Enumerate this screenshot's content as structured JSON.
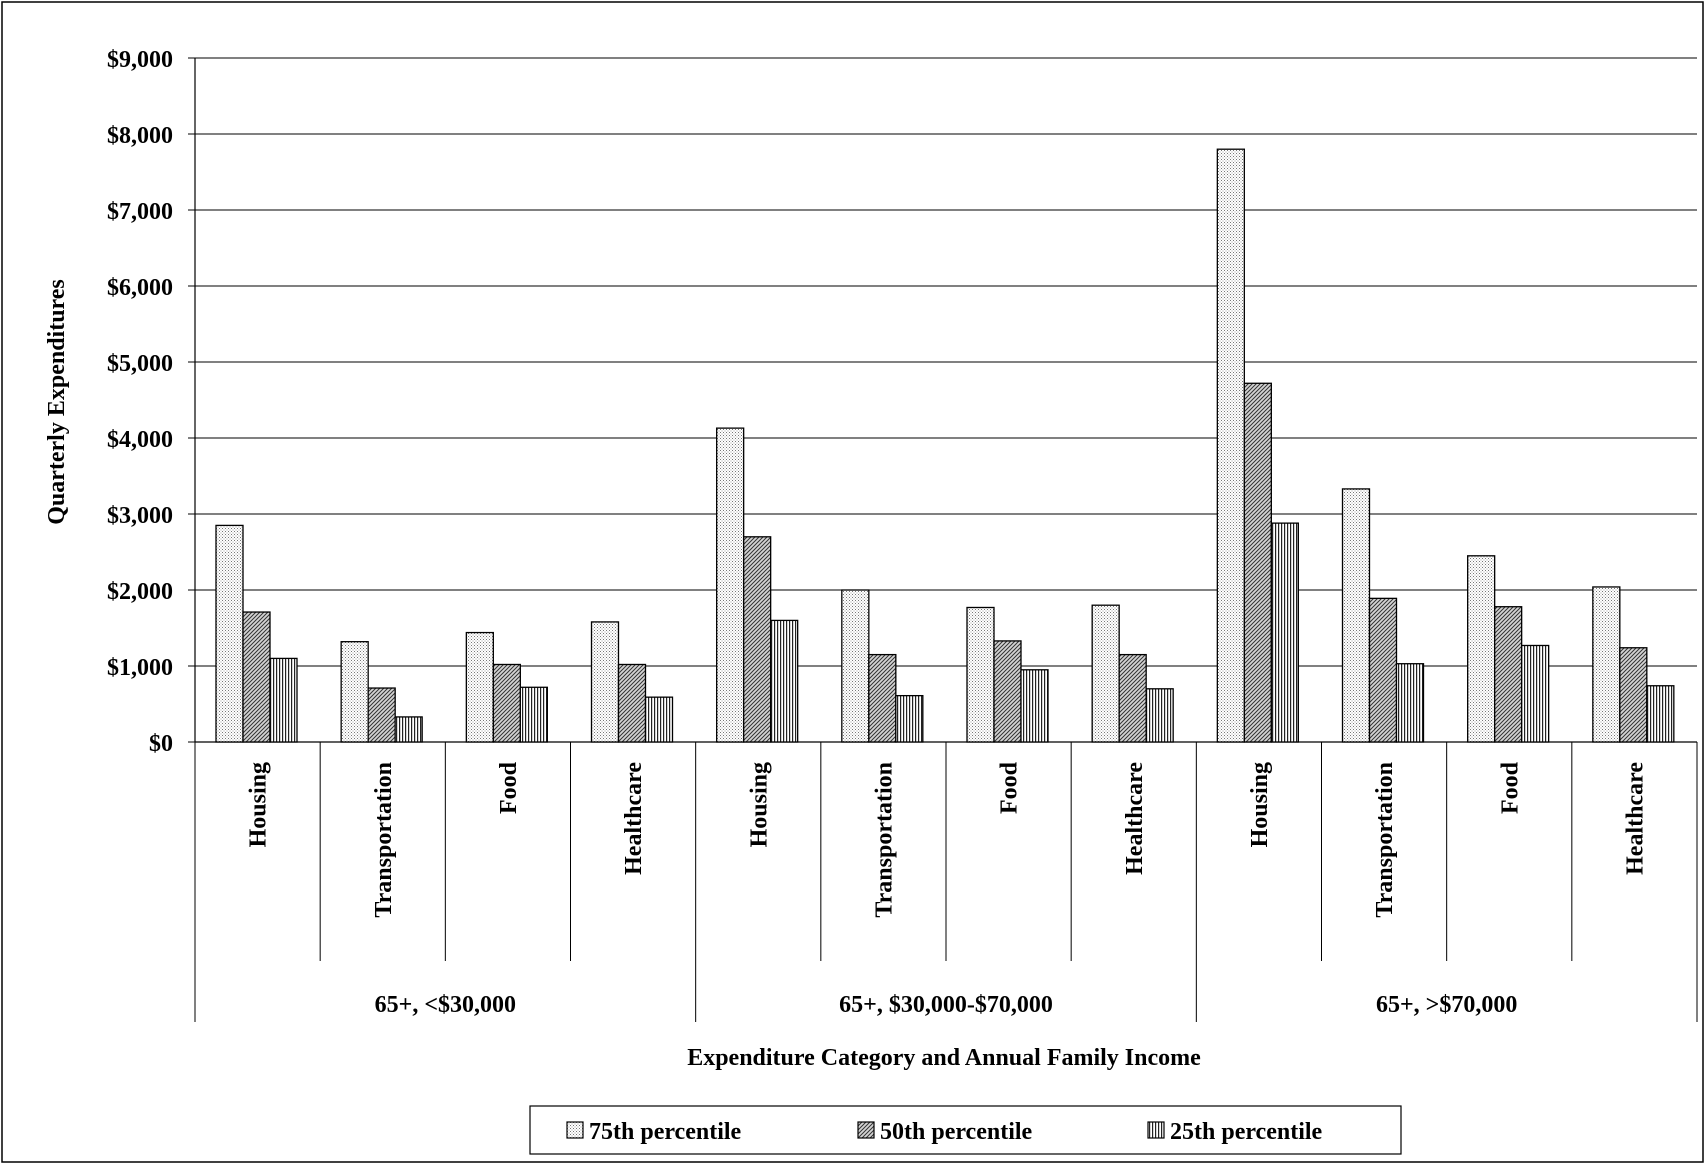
{
  "chart_data": {
    "type": "bar",
    "xlabel": "Expenditure Category and Annual Family Income",
    "ylabel": "Quarterly Expenditures",
    "ylim": [
      0,
      9000
    ],
    "y_ticks": [
      "$0",
      "$1,000",
      "$2,000",
      "$3,000",
      "$4,000",
      "$5,000",
      "$6,000",
      "$7,000",
      "$8,000",
      "$9,000"
    ],
    "grid": true,
    "legend_position": "bottom",
    "groups": [
      "65+, <$30,000",
      "65+, $30,000-$70,000",
      "65+, >$70,000"
    ],
    "categories": [
      "Housing",
      "Transportation",
      "Food",
      "Healthcare",
      "Housing",
      "Transportation",
      "Food",
      "Healthcare",
      "Housing",
      "Transportation",
      "Food",
      "Healthcare"
    ],
    "series": [
      {
        "name": "75th percentile",
        "values": [
          2850,
          1320,
          1440,
          1580,
          4130,
          2000,
          1770,
          1800,
          7800,
          3330,
          2450,
          2040
        ]
      },
      {
        "name": "50th percentile",
        "values": [
          1710,
          710,
          1020,
          1020,
          2700,
          1150,
          1330,
          1150,
          4720,
          1890,
          1780,
          1240
        ]
      },
      {
        "name": "25th percentile",
        "values": [
          1100,
          330,
          720,
          590,
          1600,
          610,
          950,
          700,
          2880,
          1030,
          1270,
          740
        ]
      }
    ]
  }
}
